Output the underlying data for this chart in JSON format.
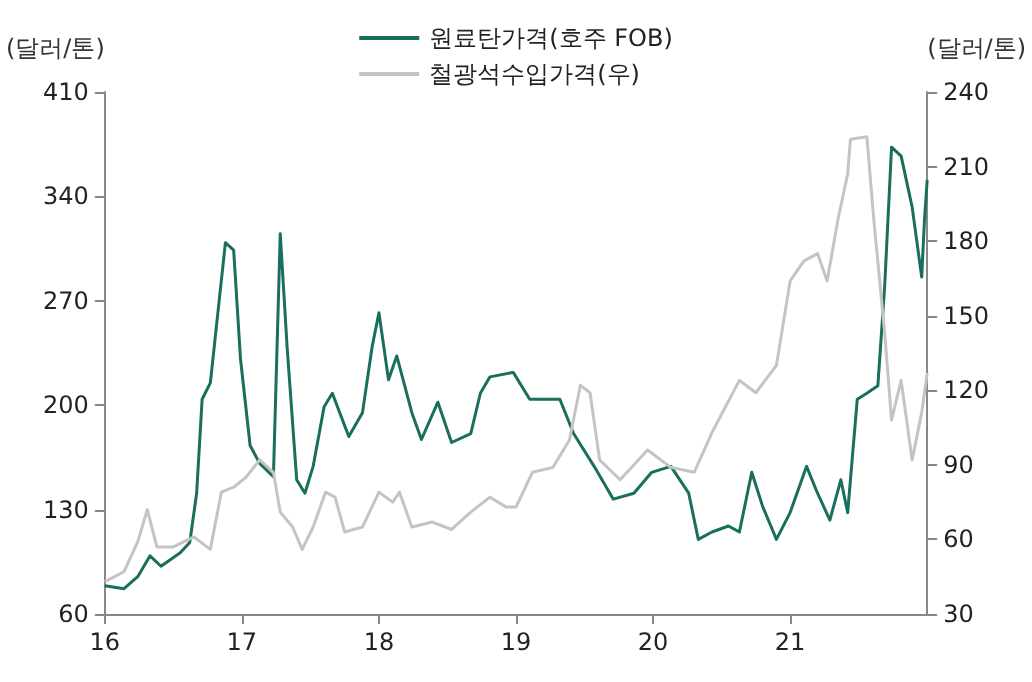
{
  "chart_data": {
    "type": "line",
    "ylabel": "(달러/톤)",
    "y2label": "(달러/톤)",
    "xlim": [
      2016,
      2022
    ],
    "xticks": [
      {
        "value": 2016,
        "label": "16"
      },
      {
        "value": 2017,
        "label": "17"
      },
      {
        "value": 2018,
        "label": "18"
      },
      {
        "value": 2019,
        "label": "19"
      },
      {
        "value": 2020,
        "label": "20"
      },
      {
        "value": 2021,
        "label": "21"
      }
    ],
    "ylim": [
      60,
      410
    ],
    "yticks": [
      60,
      130,
      200,
      270,
      340,
      410
    ],
    "y2lim": [
      30,
      240
    ],
    "y2ticks": [
      30,
      60,
      90,
      120,
      150,
      180,
      210,
      240
    ],
    "grid": false,
    "legend": "top",
    "marker": "none",
    "line_style": "solid",
    "series": [
      {
        "name": "원료탄가격(호주 FOB)",
        "color": "#1a6e5e",
        "x": [
          2016.0,
          2016.14,
          2016.24,
          2016.33,
          2016.41,
          2016.55,
          2016.62,
          2016.67,
          2016.71,
          2016.77,
          2016.84,
          2016.88,
          2016.94,
          2016.99,
          2017.06,
          2017.13,
          2017.23,
          2017.28,
          2017.33,
          2017.4,
          2017.46,
          2017.52,
          2017.6,
          2017.66,
          2017.78,
          2017.88,
          2017.95,
          2018.0,
          2018.07,
          2018.13,
          2018.24,
          2018.31,
          2018.43,
          2018.53,
          2018.67,
          2018.74,
          2018.81,
          2018.98,
          2019.1,
          2019.32,
          2019.42,
          2019.57,
          2019.71,
          2019.86,
          2019.99,
          2020.13,
          2020.26,
          2020.33,
          2020.43,
          2020.55,
          2020.63,
          2020.72,
          2020.8,
          2020.9,
          2021.0,
          2021.12,
          2021.2,
          2021.29,
          2021.37,
          2021.42,
          2021.44,
          2021.49,
          2021.56,
          2021.64,
          2021.69,
          2021.74,
          2021.81,
          2021.89,
          2021.96,
          2021.98,
          2022.0
        ],
        "values": [
          79,
          77,
          85,
          99,
          92,
          101,
          108,
          141,
          204,
          215,
          275,
          309,
          304,
          231,
          173,
          161,
          152,
          315,
          239,
          150,
          141,
          159,
          199,
          208,
          179,
          195,
          239,
          262,
          217,
          233,
          195,
          177,
          202,
          175,
          181,
          208,
          219,
          222,
          204,
          204,
          181,
          159,
          137,
          141,
          155,
          159,
          141,
          110,
          115,
          119,
          115,
          155,
          132,
          110,
          128,
          159,
          141,
          123,
          150,
          128,
          150,
          204,
          208,
          213,
          280,
          373,
          367,
          333,
          286,
          324,
          351
        ]
      },
      {
        "name": "철광석수입가격(우)",
        "color": "#c4c4c4",
        "axis": "y2",
        "x": [
          2016.0,
          2016.14,
          2016.24,
          2016.31,
          2016.38,
          2016.5,
          2016.65,
          2016.77,
          2016.85,
          2016.94,
          2017.03,
          2017.13,
          2017.23,
          2017.28,
          2017.37,
          2017.44,
          2017.52,
          2017.61,
          2017.68,
          2017.75,
          2017.88,
          2018.0,
          2018.1,
          2018.15,
          2018.24,
          2018.39,
          2018.53,
          2018.67,
          2018.81,
          2018.93,
          2019.0,
          2019.12,
          2019.27,
          2019.39,
          2019.47,
          2019.54,
          2019.61,
          2019.76,
          2019.96,
          2020.13,
          2020.3,
          2020.43,
          2020.63,
          2020.75,
          2020.9,
          2021.0,
          2021.1,
          2021.2,
          2021.27,
          2021.35,
          2021.42,
          2021.44,
          2021.56,
          2021.61,
          2021.69,
          2021.74,
          2021.81,
          2021.89,
          2021.96,
          2022.0
        ],
        "values": [
          43,
          47,
          59,
          72,
          57,
          57,
          61,
          56,
          79,
          81,
          85,
          92,
          87,
          71,
          65,
          56,
          65,
          79,
          77,
          63,
          65,
          79,
          75,
          79,
          65,
          67,
          64,
          71,
          77,
          73,
          73,
          87,
          89,
          100,
          122,
          119,
          92,
          84,
          96,
          89,
          87,
          103,
          124,
          119,
          130,
          164,
          172,
          175,
          164,
          189,
          207,
          221,
          222,
          189,
          143,
          108,
          124,
          92,
          111,
          127
        ]
      }
    ]
  }
}
